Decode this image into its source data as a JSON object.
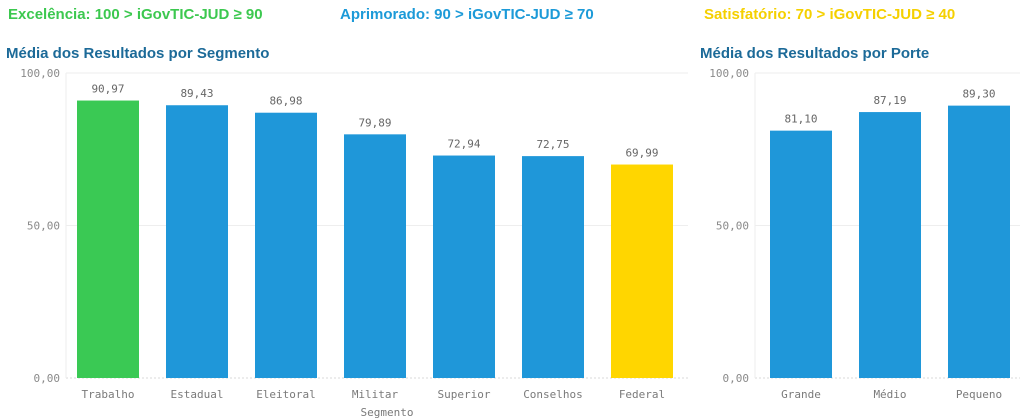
{
  "legend": [
    {
      "label": "Excelência: 100 > iGovTIC-JUD ≥ 90",
      "color": "#3cc84f"
    },
    {
      "label": "Aprimorado: 90 > iGovTIC-JUD ≥ 70",
      "color": "#1c9ad8"
    },
    {
      "label": "Satisfatório: 70 > iGovTIC-JUD ≥ 40",
      "color": "#f5d000"
    }
  ],
  "chart_data": [
    {
      "type": "bar",
      "title": "Média dos Resultados por Segmento",
      "xlabel": "Segmento",
      "ylabel": "",
      "ylim": [
        0,
        100
      ],
      "yticks": [
        "0,00",
        "50,00",
        "100,00"
      ],
      "categories": [
        "Trabalho",
        "Estadual",
        "Eleitoral",
        "Militar",
        "Superior",
        "Conselhos",
        "Federal"
      ],
      "values": [
        90.97,
        89.43,
        86.98,
        79.89,
        72.94,
        72.75,
        69.99
      ],
      "labels": [
        "90,97",
        "89,43",
        "86,98",
        "79,89",
        "72,94",
        "72,75",
        "69,99"
      ],
      "colors": [
        "#3ac954",
        "#1f97d9",
        "#1f97d9",
        "#1f97d9",
        "#1f97d9",
        "#1f97d9",
        "#ffd600"
      ]
    },
    {
      "type": "bar",
      "title": "Média dos Resultados por Porte",
      "xlabel": "",
      "ylabel": "",
      "ylim": [
        0,
        100
      ],
      "yticks": [
        "0,00",
        "50,00",
        "100,00"
      ],
      "categories": [
        "Grande",
        "Médio",
        "Pequeno"
      ],
      "values": [
        81.1,
        87.19,
        89.3
      ],
      "labels": [
        "81,10",
        "87,19",
        "89,30"
      ],
      "colors": [
        "#1f97d9",
        "#1f97d9",
        "#1f97d9"
      ]
    }
  ]
}
